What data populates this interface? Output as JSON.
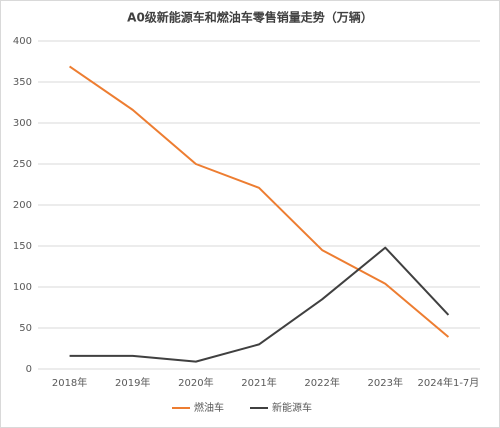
{
  "chart_data": {
    "type": "line",
    "title": "A0级新能源车和燃油车零售销量走势（万辆）",
    "categories": [
      "2018年",
      "2019年",
      "2020年",
      "2021年",
      "2022年",
      "2023年",
      "2024年1-7月"
    ],
    "series": [
      {
        "name": "燃油车",
        "color": "#ed7d31",
        "values": [
          369,
          316,
          250,
          221,
          145,
          104,
          39
        ]
      },
      {
        "name": "新能源车",
        "color": "#404040",
        "values": [
          16,
          16,
          9,
          30,
          85,
          148,
          66
        ]
      }
    ],
    "ylim": [
      0,
      400
    ],
    "yticks": [
      0,
      50,
      100,
      150,
      200,
      250,
      300,
      350,
      400
    ],
    "grid": true,
    "legend": "bottom"
  }
}
